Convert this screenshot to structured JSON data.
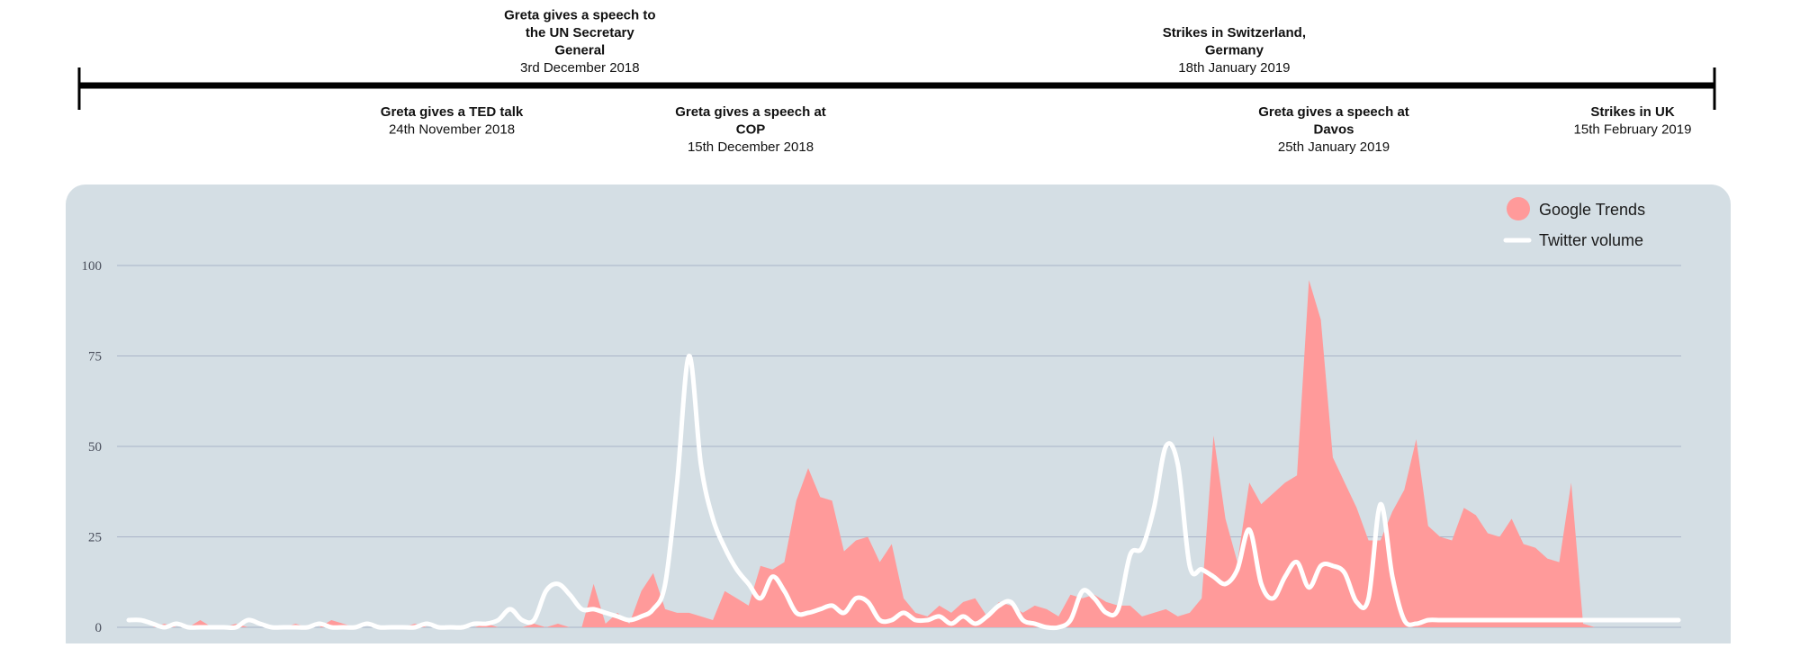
{
  "timeline": {
    "events": [
      {
        "title_lines": [
          "Greta gives a TED talk"
        ],
        "date": "24th November 2018",
        "position": "below",
        "day": 0
      },
      {
        "title_lines": [
          "Greta gives a speech to",
          "the UN Secretary",
          "General"
        ],
        "date": "3rd December 2018",
        "position": "above",
        "day": 9
      },
      {
        "title_lines": [
          "Greta gives a speech at",
          "COP"
        ],
        "date": "15th December 2018",
        "position": "below",
        "day": 21
      },
      {
        "title_lines": [
          "Strikes in Switzerland,",
          "Germany"
        ],
        "date": "18th January 2019",
        "position": "above",
        "day": 55
      },
      {
        "title_lines": [
          "Greta gives a speech at",
          "Davos"
        ],
        "date": "25th January 2019",
        "position": "below",
        "day": 62
      },
      {
        "title_lines": [
          "Strikes in UK"
        ],
        "date": "15th February 2019",
        "position": "below",
        "day": 83
      }
    ]
  },
  "legend": {
    "google": "Google Trends",
    "twitter": "Twitter volume"
  },
  "colors": {
    "panel": "#d4dee4",
    "google": "#ff9a9a",
    "twitter": "#ffffff",
    "grid": "#a9b4c8",
    "timeline": "#000000"
  },
  "chart_data": {
    "type": "area",
    "ylim": [
      0,
      100
    ],
    "yticks": [
      0,
      25,
      50,
      75,
      100
    ],
    "grid": true,
    "legend_position": "top-right",
    "series": [
      {
        "name": "Google Trends",
        "kind": "area",
        "x": [
          0,
          1,
          2,
          3,
          4,
          5,
          6,
          7,
          8,
          9,
          10,
          11,
          12,
          13,
          14,
          15,
          16,
          17,
          18,
          19,
          20,
          21,
          22,
          23,
          24,
          25,
          26,
          27,
          28,
          29,
          30,
          31,
          32,
          33,
          34,
          35,
          36,
          37,
          38,
          39,
          40,
          41,
          42,
          43,
          44,
          45,
          46,
          47,
          48,
          49,
          50,
          51,
          52,
          53,
          54,
          55,
          56,
          57,
          58,
          59,
          60,
          61,
          62,
          63,
          64,
          65,
          66,
          67,
          68,
          69,
          70,
          71,
          72,
          73,
          74,
          75,
          76,
          77,
          78,
          79,
          80,
          81,
          82,
          83,
          84,
          85,
          86,
          87,
          88,
          89,
          90,
          91,
          92,
          93,
          94,
          95,
          96,
          97,
          98,
          99,
          100,
          101,
          102,
          103,
          104,
          105,
          106,
          107,
          108,
          109,
          110,
          111,
          112,
          113,
          114,
          115,
          116,
          117,
          118,
          119,
          120,
          121,
          122,
          123,
          124,
          125,
          126,
          127,
          128,
          129,
          130
        ],
        "values": [
          0,
          0,
          0,
          1,
          0,
          0,
          2,
          0,
          0,
          1,
          0,
          0,
          0,
          0,
          1,
          0,
          0,
          2,
          1,
          0,
          0,
          0,
          0,
          0,
          1,
          0,
          0,
          0,
          0,
          0,
          1,
          0,
          0,
          0,
          1,
          0,
          1,
          0,
          0,
          12,
          1,
          4,
          1,
          10,
          15,
          5,
          4,
          4,
          3,
          2,
          10,
          8,
          6,
          17,
          16,
          18,
          35,
          44,
          36,
          35,
          21,
          24,
          25,
          18,
          23,
          8,
          4,
          3,
          6,
          4,
          7,
          8,
          3,
          7,
          6,
          4,
          6,
          5,
          3,
          9,
          8,
          9,
          7,
          6,
          6,
          3,
          4,
          5,
          3,
          4,
          8,
          53,
          30,
          18,
          40,
          34,
          37,
          40,
          42,
          96,
          85,
          47,
          40,
          33,
          24,
          24,
          32,
          38,
          52,
          28,
          25,
          24,
          33,
          31,
          26,
          25,
          30,
          23,
          22,
          19,
          18,
          40,
          1,
          0,
          0,
          0,
          0,
          0,
          0,
          0,
          0
        ],
        "color": "#ff9a9a"
      },
      {
        "name": "Twitter volume",
        "kind": "line",
        "x": [
          0,
          1,
          2,
          3,
          4,
          5,
          6,
          7,
          8,
          9,
          10,
          11,
          12,
          13,
          14,
          15,
          16,
          17,
          18,
          19,
          20,
          21,
          22,
          23,
          24,
          25,
          26,
          27,
          28,
          29,
          30,
          31,
          32,
          33,
          34,
          35,
          36,
          37,
          38,
          39,
          40,
          41,
          42,
          43,
          44,
          45,
          46,
          47,
          48,
          49,
          50,
          51,
          52,
          53,
          54,
          55,
          56,
          57,
          58,
          59,
          60,
          61,
          62,
          63,
          64,
          65,
          66,
          67,
          68,
          69,
          70,
          71,
          72,
          73,
          74,
          75,
          76,
          77,
          78,
          79,
          80,
          81,
          82,
          83,
          84,
          85,
          86,
          87,
          88,
          89,
          90,
          91,
          92,
          93,
          94,
          95,
          96,
          97,
          98,
          99,
          100,
          101,
          102,
          103,
          104,
          105,
          106,
          107,
          108,
          109,
          110,
          111,
          112,
          113,
          114,
          115,
          116,
          117,
          118,
          119,
          120,
          121,
          122,
          123,
          124,
          125,
          126,
          127,
          128,
          129,
          130
        ],
        "values": [
          2,
          2,
          1,
          0,
          1,
          0,
          0,
          0,
          0,
          0,
          2,
          1,
          0,
          0,
          0,
          0,
          1,
          0,
          0,
          0,
          1,
          0,
          0,
          0,
          0,
          1,
          0,
          0,
          0,
          1,
          1,
          2,
          5,
          2,
          2,
          10,
          12,
          9,
          5,
          5,
          4,
          3,
          2,
          3,
          5,
          12,
          40,
          75,
          45,
          30,
          22,
          16,
          12,
          8,
          14,
          10,
          4,
          4,
          5,
          6,
          4,
          8,
          7,
          2,
          2,
          4,
          2,
          2,
          3,
          1,
          3,
          1,
          3,
          6,
          7,
          2,
          1,
          0,
          0,
          2,
          10,
          8,
          4,
          5,
          20,
          22,
          33,
          50,
          45,
          17,
          16,
          14,
          12,
          16,
          27,
          12,
          8,
          14,
          18,
          11,
          17,
          17,
          15,
          7,
          8,
          34,
          14,
          2,
          1,
          2,
          2,
          2,
          2,
          2,
          2,
          2,
          2,
          2,
          2,
          2,
          2,
          2,
          2,
          2,
          2,
          2,
          2,
          2,
          2,
          2,
          2
        ],
        "color": "#ffffff"
      }
    ]
  }
}
